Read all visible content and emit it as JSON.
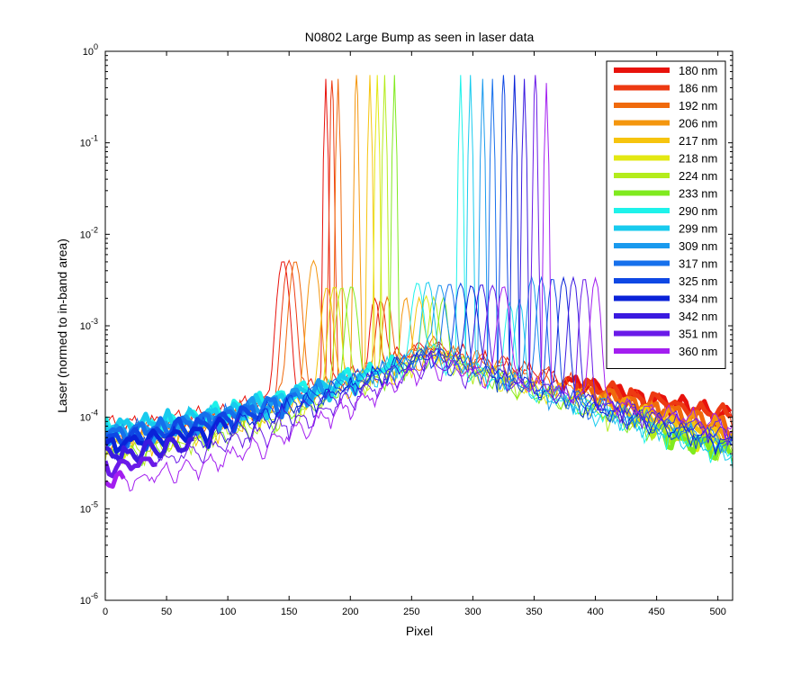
{
  "chart_data": {
    "type": "line",
    "title": "N0802   Large Bump as seen in laser data",
    "xlabel": "Pixel",
    "ylabel": "Laser (normed to in-band area)",
    "xlim": [
      0,
      512
    ],
    "ylim": [
      1e-06,
      1
    ],
    "yscale": "log",
    "grid": false,
    "legend_position": "top-right",
    "x_ticks": [
      0,
      50,
      100,
      150,
      200,
      250,
      300,
      350,
      400,
      450,
      500
    ],
    "y_ticks": [
      {
        "value": 1e-06,
        "base": "10",
        "exp": "-6"
      },
      {
        "value": 1e-05,
        "base": "10",
        "exp": "-5"
      },
      {
        "value": 0.0001,
        "base": "10",
        "exp": "-4"
      },
      {
        "value": 0.001,
        "base": "10",
        "exp": "-3"
      },
      {
        "value": 0.01,
        "base": "10",
        "exp": "-2"
      },
      {
        "value": 0.1,
        "base": "10",
        "exp": "-1"
      },
      {
        "value": 1,
        "base": "10",
        "exp": "0"
      }
    ],
    "series": [
      {
        "name": "180 nm",
        "color": "#e8120c",
        "peak_x": 180,
        "peak_y": 0.5,
        "bump_y": 0.0006,
        "base_left": 8e-05,
        "base_right": 0.0001
      },
      {
        "name": "186 nm",
        "color": "#ed3a12",
        "peak_x": 185,
        "peak_y": 0.48,
        "bump_y": 0.0006,
        "base_left": 7e-05,
        "base_right": 0.0001
      },
      {
        "name": "192 nm",
        "color": "#f06a0c",
        "peak_x": 190,
        "peak_y": 0.5,
        "bump_y": 0.0006,
        "base_left": 7e-05,
        "base_right": 8e-05
      },
      {
        "name": "206 nm",
        "color": "#f4960e",
        "peak_x": 205,
        "peak_y": 0.55,
        "bump_y": 0.0005,
        "base_left": 6e-05,
        "base_right": 7e-05
      },
      {
        "name": "217 nm",
        "color": "#f6c40e",
        "peak_x": 216,
        "peak_y": 0.55,
        "bump_y": 0.0005,
        "base_left": 5e-05,
        "base_right": 6e-05
      },
      {
        "name": "218 nm",
        "color": "#e3e812",
        "peak_x": 222,
        "peak_y": 0.55,
        "bump_y": 0.0005,
        "base_left": 5e-05,
        "base_right": 5e-05
      },
      {
        "name": "224 nm",
        "color": "#b4ec1c",
        "peak_x": 228,
        "peak_y": 0.55,
        "bump_y": 0.0005,
        "base_left": 4e-05,
        "base_right": 4e-05
      },
      {
        "name": "233 nm",
        "color": "#80ea1e",
        "peak_x": 236,
        "peak_y": 0.55,
        "bump_y": 0.0005,
        "base_left": 4e-05,
        "base_right": 4e-05
      },
      {
        "name": "290 nm",
        "color": "#1ef2ea",
        "peak_x": 290,
        "peak_y": 0.55,
        "bump_y": 0.0005,
        "base_left": 8e-05,
        "base_right": 4e-05
      },
      {
        "name": "299 nm",
        "color": "#18cbee",
        "peak_x": 298,
        "peak_y": 0.55,
        "bump_y": 0.0005,
        "base_left": 8e-05,
        "base_right": 4e-05
      },
      {
        "name": "309 nm",
        "color": "#1a9aee",
        "peak_x": 308,
        "peak_y": 0.5,
        "bump_y": 0.0005,
        "base_left": 7e-05,
        "base_right": 5e-05
      },
      {
        "name": "317 nm",
        "color": "#1670ec",
        "peak_x": 316,
        "peak_y": 0.5,
        "bump_y": 0.0005,
        "base_left": 7e-05,
        "base_right": 5e-05
      },
      {
        "name": "325 nm",
        "color": "#0f48e4",
        "peak_x": 325,
        "peak_y": 0.55,
        "bump_y": 0.0005,
        "base_left": 6e-05,
        "base_right": 5e-05
      },
      {
        "name": "334 nm",
        "color": "#0a22d8",
        "peak_x": 334,
        "peak_y": 0.55,
        "bump_y": 0.0005,
        "base_left": 5e-05,
        "base_right": 5e-05
      },
      {
        "name": "342 nm",
        "color": "#3a1ae0",
        "peak_x": 342,
        "peak_y": 0.5,
        "bump_y": 0.0005,
        "base_left": 4e-05,
        "base_right": 6e-05
      },
      {
        "name": "351 nm",
        "color": "#6a1ae8",
        "peak_x": 351,
        "peak_y": 0.55,
        "bump_y": 0.0004,
        "base_left": 3e-05,
        "base_right": 7e-05
      },
      {
        "name": "360 nm",
        "color": "#a31ef0",
        "peak_x": 360,
        "peak_y": 0.45,
        "bump_y": 0.0004,
        "base_left": 2e-05,
        "base_right": 8e-05
      }
    ]
  }
}
